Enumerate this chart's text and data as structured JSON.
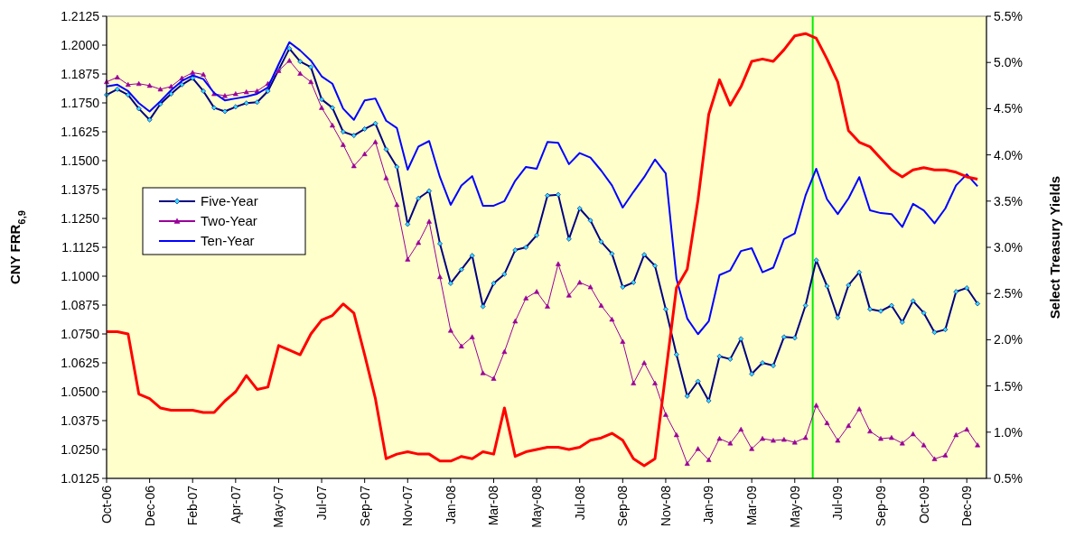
{
  "chart_data": {
    "type": "line",
    "ylabel": "CNY FRR$_{6,9}$",
    "y2label": "Select Treasury Yields",
    "categories": [
      "Oct-06",
      null,
      null,
      null,
      "Dec-06",
      null,
      null,
      null,
      "Feb-07",
      null,
      null,
      null,
      "Apr-07",
      null,
      null,
      null,
      "May-07",
      null,
      null,
      null,
      "Jul-07",
      null,
      null,
      null,
      "Sep-07",
      null,
      null,
      null,
      "Nov-07",
      null,
      null,
      null,
      "Jan-08",
      null,
      null,
      null,
      "Mar-08",
      null,
      null,
      null,
      "May-08",
      null,
      null,
      null,
      "Jul-08",
      null,
      null,
      null,
      "Sep-08",
      null,
      null,
      null,
      "Nov-08",
      null,
      null,
      null,
      "Jan-09",
      null,
      null,
      null,
      "Mar-09",
      null,
      null,
      null,
      "May-09",
      null,
      null,
      null,
      "Jul-09",
      null,
      null,
      null,
      "Sep-09",
      null,
      null,
      null,
      "Oct-09",
      null,
      null,
      null,
      "Dec-09",
      null
    ],
    "ylim": [
      1.0125,
      1.2125
    ],
    "yticks": [
      {
        "value": 1.0125,
        "label": "1.0125"
      },
      {
        "value": 1.025,
        "label": "1.0250"
      },
      {
        "value": 1.0375,
        "label": "1.0375"
      },
      {
        "value": 1.05,
        "label": "1.0500"
      },
      {
        "value": 1.0625,
        "label": "1.0625"
      },
      {
        "value": 1.075,
        "label": "1.0750"
      },
      {
        "value": 1.0875,
        "label": "1.0875"
      },
      {
        "value": 1.1,
        "label": "1.1000"
      },
      {
        "value": 1.1125,
        "label": "1.1125"
      },
      {
        "value": 1.125,
        "label": "1.1250"
      },
      {
        "value": 1.1375,
        "label": "1.1375"
      },
      {
        "value": 1.15,
        "label": "1.1500"
      },
      {
        "value": 1.1625,
        "label": "1.1625"
      },
      {
        "value": 1.175,
        "label": "1.1750"
      },
      {
        "value": 1.1875,
        "label": "1.1875"
      },
      {
        "value": 1.2,
        "label": "1.2000"
      },
      {
        "value": 1.2125,
        "label": "1.2125"
      }
    ],
    "y2lim": [
      0.5,
      5.5
    ],
    "y2ticks": [
      {
        "value": 0.5,
        "label": "0.5%"
      },
      {
        "value": 1,
        "label": "1.0%"
      },
      {
        "value": 1.5,
        "label": "1.5%"
      },
      {
        "value": 2,
        "label": "2.0%"
      },
      {
        "value": 2.5,
        "label": "2.5%"
      },
      {
        "value": 3,
        "label": "3.0%"
      },
      {
        "value": 3.5,
        "label": "3.5%"
      },
      {
        "value": 4,
        "label": "4.0%"
      },
      {
        "value": 4.5,
        "label": "4.5%"
      },
      {
        "value": 5,
        "label": "5.0%"
      },
      {
        "value": 5.5,
        "label": "5.5%"
      }
    ],
    "legend": "left",
    "series": [
      {
        "name": "Five-Year",
        "color": "#000080",
        "axis": "y2",
        "marker": "diamond",
        "values": [
          4.65,
          4.71,
          4.65,
          4.5,
          4.38,
          4.55,
          4.66,
          4.76,
          4.83,
          4.69,
          4.51,
          4.47,
          4.52,
          4.56,
          4.57,
          4.69,
          4.92,
          5.15,
          5.01,
          4.95,
          4.6,
          4.51,
          4.25,
          4.21,
          4.28,
          4.34,
          4.06,
          3.87,
          3.25,
          3.53,
          3.61,
          3.04,
          2.61,
          2.76,
          2.91,
          2.36,
          2.61,
          2.71,
          2.97,
          3.0,
          3.13,
          3.56,
          3.57,
          3.09,
          3.42,
          3.29,
          3.06,
          2.93,
          2.57,
          2.62,
          2.92,
          2.8,
          2.33,
          1.84,
          1.39,
          1.55,
          1.34,
          1.82,
          1.79,
          2.01,
          1.63,
          1.75,
          1.72,
          2.03,
          2.02,
          2.37,
          2.86,
          2.58,
          2.24,
          2.59,
          2.73,
          2.33,
          2.31,
          2.37,
          2.19,
          2.42,
          2.29,
          2.08,
          2.11,
          2.52,
          2.56,
          2.39
        ]
      },
      {
        "name": "Two-Year",
        "color": "#990099",
        "axis": "y2",
        "marker": "triangle",
        "values": [
          4.79,
          4.84,
          4.76,
          4.77,
          4.75,
          4.71,
          4.74,
          4.83,
          4.89,
          4.87,
          4.66,
          4.64,
          4.66,
          4.68,
          4.69,
          4.77,
          4.91,
          5.02,
          4.88,
          4.79,
          4.51,
          4.32,
          4.11,
          3.88,
          4.01,
          4.14,
          3.75,
          3.46,
          2.87,
          3.05,
          3.28,
          2.68,
          2.1,
          1.93,
          2.03,
          1.64,
          1.58,
          1.87,
          2.2,
          2.45,
          2.52,
          2.36,
          2.82,
          2.48,
          2.62,
          2.57,
          2.37,
          2.22,
          1.98,
          1.53,
          1.75,
          1.53,
          1.19,
          0.97,
          0.66,
          0.82,
          0.7,
          0.93,
          0.88,
          1.03,
          0.82,
          0.93,
          0.91,
          0.92,
          0.89,
          0.94,
          1.29,
          1.1,
          0.91,
          1.07,
          1.25,
          1.01,
          0.93,
          0.94,
          0.88,
          0.98,
          0.86,
          0.71,
          0.75,
          0.97,
          1.03,
          0.86
        ]
      },
      {
        "name": "Ten-Year",
        "color": "#0000ff",
        "axis": "y2",
        "marker": "none",
        "values": [
          4.74,
          4.76,
          4.69,
          4.56,
          4.47,
          4.58,
          4.7,
          4.8,
          4.86,
          4.82,
          4.67,
          4.59,
          4.61,
          4.63,
          4.66,
          4.73,
          4.98,
          5.22,
          5.13,
          5.02,
          4.85,
          4.77,
          4.5,
          4.38,
          4.59,
          4.61,
          4.37,
          4.29,
          3.84,
          4.09,
          4.15,
          3.76,
          3.46,
          3.67,
          3.77,
          3.45,
          3.45,
          3.5,
          3.72,
          3.87,
          3.85,
          4.14,
          4.13,
          3.9,
          4.02,
          3.97,
          3.83,
          3.67,
          3.43,
          3.6,
          3.76,
          3.95,
          3.8,
          2.66,
          2.23,
          2.06,
          2.2,
          2.7,
          2.75,
          2.96,
          2.99,
          2.73,
          2.78,
          3.09,
          3.15,
          3.56,
          3.85,
          3.52,
          3.36,
          3.53,
          3.76,
          3.4,
          3.37,
          3.36,
          3.22,
          3.47,
          3.4,
          3.26,
          3.42,
          3.67,
          3.79,
          3.66
        ]
      },
      {
        "color": "#ff0000",
        "axis": "y",
        "marker": "none",
        "values": [
          1.076,
          1.076,
          1.075,
          1.049,
          1.047,
          1.043,
          1.042,
          1.042,
          1.042,
          1.041,
          1.041,
          1.046,
          1.05,
          1.057,
          1.051,
          1.052,
          1.07,
          1.068,
          1.066,
          1.075,
          1.081,
          1.083,
          1.088,
          1.084,
          1.066,
          1.047,
          1.021,
          1.023,
          1.024,
          1.023,
          1.023,
          1.02,
          1.02,
          1.022,
          1.021,
          1.024,
          1.023,
          1.043,
          1.022,
          1.024,
          1.025,
          1.026,
          1.026,
          1.025,
          1.026,
          1.029,
          1.03,
          1.032,
          1.029,
          1.021,
          1.018,
          1.021,
          1.058,
          1.095,
          1.103,
          1.133,
          1.17,
          1.185,
          1.174,
          1.182,
          1.193,
          1.194,
          1.193,
          1.198,
          1.204,
          1.205,
          1.203,
          1.194,
          1.184,
          1.163,
          1.158,
          1.156,
          1.151,
          1.146,
          1.143,
          1.146,
          1.147,
          1.146,
          1.146,
          1.145,
          1.143,
          1.142
        ]
      }
    ]
  }
}
